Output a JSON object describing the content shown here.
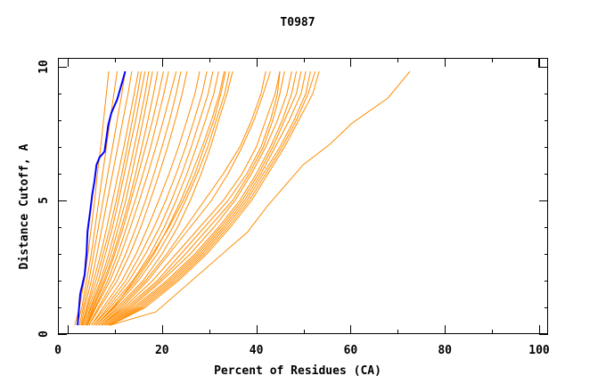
{
  "chart_data": {
    "type": "line",
    "title": "T0987",
    "xlabel": "Percent of Residues (CA)",
    "ylabel": "Distance Cutoff, A",
    "xlim": [
      0,
      100
    ],
    "ylim": [
      0,
      10
    ],
    "x_ticks": [
      "0",
      "20",
      "40",
      "60",
      "80",
      "100"
    ],
    "y_ticks": [
      "0",
      "5",
      "10"
    ],
    "grid": false,
    "colors": {
      "others": "#ff8c00",
      "highlight": "#0000ff"
    },
    "y_levels": [
      0.33,
      1,
      2,
      3,
      4,
      5,
      6,
      7,
      8,
      9,
      9.83
    ],
    "highlight_series": {
      "points": [
        [
          2.1,
          0.33
        ],
        [
          2.65,
          1.5
        ],
        [
          3.6,
          2.22
        ],
        [
          4.0,
          3.06
        ],
        [
          4.2,
          3.83
        ],
        [
          4.85,
          4.72
        ],
        [
          5.2,
          5.22
        ],
        [
          5.67,
          5.72
        ],
        [
          6.1,
          6.33
        ],
        [
          6.75,
          6.61
        ],
        [
          7.8,
          6.83
        ],
        [
          8.6,
          7.83
        ],
        [
          9.26,
          8.28
        ],
        [
          10.5,
          8.78
        ],
        [
          11.5,
          9.39
        ],
        [
          12.2,
          9.83
        ]
      ]
    },
    "other_series_x_at_levels": [
      [
        1.5,
        2.5,
        3.5,
        4.3,
        5,
        5.7,
        6.3,
        7,
        7.6,
        8.2,
        8.7
      ],
      [
        2,
        3,
        4,
        5,
        5.8,
        6.6,
        7.4,
        8.2,
        9,
        9.8,
        10.5
      ],
      [
        2.5,
        3.3,
        4.5,
        5.5,
        6.5,
        7.5,
        8.5,
        9.5,
        10.5,
        11.5,
        12.2
      ],
      [
        2.8,
        3.6,
        5,
        6.2,
        7.3,
        8.4,
        9.5,
        10.6,
        11.7,
        12.8,
        13.6
      ],
      [
        3,
        4,
        5.5,
        7,
        8.3,
        9.5,
        10.7,
        11.9,
        13,
        14.1,
        15
      ],
      [
        3,
        4.2,
        6,
        7.5,
        9,
        10.3,
        11.5,
        12.6,
        13.7,
        14.8,
        15.6
      ],
      [
        3.2,
        4.5,
        6.5,
        8,
        9.5,
        10.8,
        12,
        13.2,
        14.4,
        15.5,
        16.4
      ],
      [
        3.5,
        4.8,
        7,
        8.7,
        10.2,
        11.6,
        12.9,
        14.1,
        15.3,
        16.4,
        17.2
      ],
      [
        3.5,
        5,
        7.3,
        9.2,
        10.8,
        12.3,
        13.6,
        14.8,
        16,
        17.1,
        18
      ],
      [
        3.8,
        5.3,
        7.7,
        9.7,
        11.4,
        13,
        14.4,
        15.7,
        17,
        18.2,
        19.1
      ],
      [
        4,
        5.5,
        8,
        10,
        11.8,
        13.4,
        15,
        16.5,
        18,
        19.3,
        20.3
      ],
      [
        4,
        5.8,
        8.5,
        10.6,
        12.5,
        14.3,
        16,
        17.6,
        19,
        20.4,
        21.4
      ],
      [
        4.2,
        6,
        9,
        11.3,
        13.3,
        15.2,
        17,
        18.7,
        20.3,
        21.8,
        23
      ],
      [
        4.5,
        6.5,
        9.8,
        12.3,
        14.5,
        16.5,
        18.3,
        20,
        21.6,
        23,
        24
      ],
      [
        4.5,
        6.8,
        10.5,
        13.2,
        15.5,
        17.5,
        19.4,
        21.2,
        22.8,
        24.3,
        25.3
      ],
      [
        5,
        7.5,
        11.5,
        14.5,
        17,
        19.3,
        21.5,
        23.5,
        25.3,
        27,
        28
      ],
      [
        5,
        8,
        12.3,
        15.5,
        18.3,
        20.8,
        23,
        25,
        26.8,
        28.5,
        29.5
      ],
      [
        5.5,
        8.5,
        13,
        16.5,
        19.5,
        22,
        24.2,
        26.2,
        28,
        29.8,
        30.8
      ],
      [
        5.5,
        9,
        13.8,
        17.5,
        20.5,
        23,
        25.3,
        27.3,
        29.2,
        31,
        32
      ],
      [
        6,
        9.5,
        14.5,
        18.3,
        21.3,
        24,
        26.3,
        28.5,
        30.5,
        32.2,
        33.2
      ],
      [
        6,
        10,
        15,
        19,
        22.3,
        25,
        27.5,
        29.7,
        31.5,
        33.3,
        34.3
      ],
      [
        6.5,
        10.5,
        16,
        20,
        23.3,
        26,
        28.3,
        30.3,
        32,
        33.8,
        35
      ],
      [
        6,
        9.8,
        14,
        18,
        21.5,
        24.5,
        27,
        29,
        31,
        32.5,
        33.5
      ],
      [
        7,
        12,
        18,
        23,
        28,
        33,
        37,
        40,
        42,
        44,
        45
      ],
      [
        7,
        12.5,
        19,
        24,
        29,
        34,
        38,
        41,
        43,
        44.5,
        45
      ],
      [
        7.5,
        13,
        19.5,
        25,
        30,
        35,
        38.5,
        41.5,
        43.5,
        45,
        46
      ],
      [
        7.5,
        13.5,
        20,
        26,
        31,
        35.5,
        39,
        42,
        44.5,
        46.5,
        47.5
      ],
      [
        8,
        14,
        21,
        27,
        32,
        36.5,
        40,
        43,
        45.5,
        47.5,
        48.5
      ],
      [
        8,
        14.5,
        21.5,
        27.5,
        32.5,
        37,
        40.5,
        43.5,
        46,
        48.5,
        49.5
      ],
      [
        8.5,
        15,
        22,
        28,
        33,
        37.5,
        41,
        44,
        47,
        49.5,
        50.5
      ],
      [
        8.5,
        15.5,
        22.5,
        28.5,
        33.5,
        38,
        41.5,
        45,
        48,
        50.5,
        51.5
      ],
      [
        9,
        16,
        23,
        29,
        34,
        38.5,
        42,
        45.5,
        48.5,
        51,
        52.5
      ],
      [
        9,
        16.5,
        23.5,
        29.5,
        34.5,
        39,
        42.5,
        46,
        49,
        52,
        53.3
      ],
      [
        7,
        11.5,
        17,
        21.5,
        26,
        30.5,
        34,
        37,
        39.5,
        41.5,
        43
      ],
      [
        6.5,
        11,
        16.5,
        21,
        25,
        29,
        33,
        36.5,
        39,
        41,
        42
      ]
    ],
    "outlier_series": {
      "points": [
        [
          8.9,
          0.33
        ],
        [
          18.7,
          0.83
        ],
        [
          38.2,
          3.83
        ],
        [
          42.3,
          4.78
        ],
        [
          49.9,
          6.33
        ],
        [
          55.6,
          7.1
        ],
        [
          60.3,
          7.89
        ],
        [
          67.9,
          8.83
        ],
        [
          72.6,
          9.83
        ]
      ]
    }
  }
}
